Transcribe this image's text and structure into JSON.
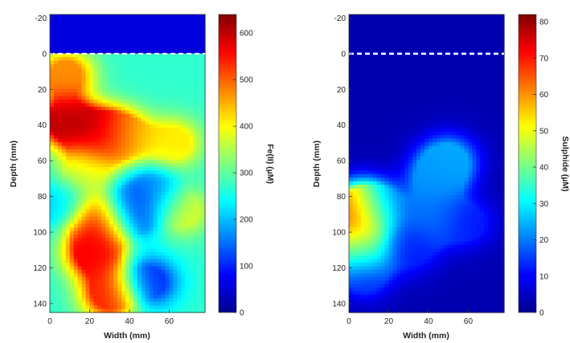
{
  "chart_data": [
    {
      "type": "heatmap",
      "title": "",
      "xlabel": "Width (mm)",
      "ylabel": "Depth (mm)",
      "xlim": [
        0,
        78
      ],
      "ylim": [
        -22,
        145
      ],
      "y_inverted": true,
      "xticks": [
        0,
        20,
        40,
        60
      ],
      "yticks": [
        -20,
        0,
        20,
        40,
        60,
        80,
        100,
        120,
        140
      ],
      "reference_line": {
        "y": 0,
        "style": "dashed",
        "color": "#ffffff"
      },
      "colorbar": {
        "label": "Fe(II) (µM)",
        "range": [
          0,
          640
        ],
        "ticks": [
          0,
          100,
          200,
          300,
          400,
          500,
          600
        ],
        "colormap": "jet"
      },
      "background_value": 270,
      "above_surface_value": 60,
      "hotspots": [
        {
          "x": 8,
          "y": 38,
          "value": 600
        },
        {
          "x": 26,
          "y": 45,
          "value": 620
        },
        {
          "x": 38,
          "y": 46,
          "value": 430
        },
        {
          "x": 18,
          "y": 65,
          "value": 380
        },
        {
          "x": 26,
          "y": 95,
          "value": 600
        },
        {
          "x": 22,
          "y": 112,
          "value": 560
        },
        {
          "x": 30,
          "y": 135,
          "value": 540
        },
        {
          "x": 8,
          "y": 12,
          "value": 470
        },
        {
          "x": 62,
          "y": 50,
          "value": 410
        },
        {
          "x": 66,
          "y": 88,
          "value": 380
        },
        {
          "x": 40,
          "y": 90,
          "value": 80
        },
        {
          "x": 50,
          "y": 128,
          "value": 110
        },
        {
          "x": 5,
          "y": 85,
          "value": 210
        },
        {
          "x": 52,
          "y": 78,
          "value": 150
        }
      ]
    },
    {
      "type": "heatmap",
      "title": "",
      "xlabel": "Width (mm)",
      "ylabel": "Depth (mm)",
      "xlim": [
        0,
        78
      ],
      "ylim": [
        -22,
        145
      ],
      "y_inverted": true,
      "xticks": [
        0,
        20,
        40,
        60
      ],
      "yticks": [
        -20,
        0,
        20,
        40,
        60,
        80,
        100,
        120,
        140
      ],
      "reference_line": {
        "y": 0,
        "style": "dashed",
        "color": "#ffffff"
      },
      "colorbar": {
        "label": "Sulphide (µM)",
        "range": [
          0,
          82
        ],
        "ticks": [
          0,
          10,
          20,
          30,
          40,
          50,
          60,
          70,
          80
        ],
        "colormap": "jet"
      },
      "background_value": 4,
      "above_surface_value": 4,
      "hotspots": [
        {
          "x": 6,
          "y": 88,
          "value": 76
        },
        {
          "x": 6,
          "y": 110,
          "value": 45
        },
        {
          "x": 44,
          "y": 70,
          "value": 22
        },
        {
          "x": 50,
          "y": 60,
          "value": 24
        },
        {
          "x": 42,
          "y": 92,
          "value": 20
        },
        {
          "x": 15,
          "y": 85,
          "value": 13
        },
        {
          "x": 8,
          "y": 125,
          "value": 12
        },
        {
          "x": 32,
          "y": 110,
          "value": 12
        },
        {
          "x": 60,
          "y": 95,
          "value": 12
        }
      ]
    }
  ]
}
